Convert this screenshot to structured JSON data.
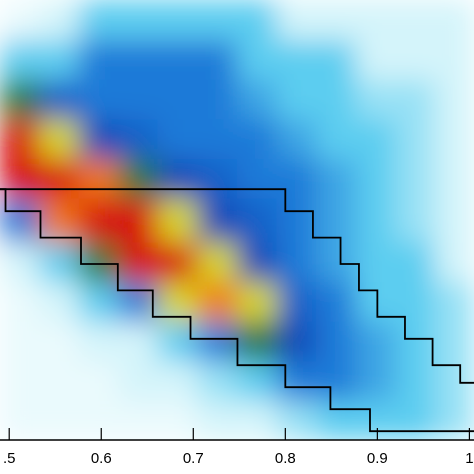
{
  "chart_data": {
    "type": "heatmap",
    "xlim": [
      0.49,
      1.005
    ],
    "ylim": [
      0,
      1
    ],
    "xticks": [
      {
        "value": 0.5,
        "label": ".5"
      },
      0.6,
      0.7,
      0.8,
      0.9,
      1
    ],
    "xbins": [
      0.49,
      0.533,
      0.576,
      0.619,
      0.662,
      0.705,
      0.748,
      0.791,
      0.834,
      0.877,
      0.92,
      0.963,
      1.005
    ],
    "ybins": [
      0,
      0.09,
      0.18,
      0.27,
      0.36,
      0.45,
      0.55,
      0.64,
      0.73,
      0.82,
      0.91,
      1.0
    ],
    "zlim": [
      0,
      9
    ],
    "colormap": [
      "#ffffff",
      "#d4f4fa",
      "#5ccdf0",
      "#1e7ad8",
      "#1448b8",
      "#2a7a3a",
      "#d8d820",
      "#f07818",
      "#d81010",
      "#a00000"
    ],
    "z": [
      [
        0.5,
        0.5,
        0.5,
        0.5,
        0.5,
        1,
        1,
        1.5,
        2,
        2,
        2,
        1.5
      ],
      [
        0.5,
        0.5,
        0.5,
        1,
        1,
        1.5,
        2,
        3,
        3,
        2.5,
        2,
        1.5
      ],
      [
        0.5,
        0.5,
        1,
        1,
        2,
        3,
        5,
        4,
        3,
        2.5,
        2,
        1.5
      ],
      [
        0.5,
        1,
        2,
        3,
        6,
        7,
        6,
        3.5,
        3,
        2,
        2,
        1.5
      ],
      [
        1,
        2,
        5,
        8,
        8,
        6,
        4,
        3,
        2.5,
        2,
        2,
        1
      ],
      [
        3,
        7,
        8,
        8,
        6,
        4,
        3.5,
        3,
        2.5,
        2,
        1.5,
        1
      ],
      [
        8,
        8,
        7,
        5,
        4,
        3.5,
        3,
        3,
        2.5,
        2,
        1.5,
        1
      ],
      [
        8,
        6,
        4,
        3.5,
        3,
        3,
        3,
        2.5,
        2,
        2,
        1.5,
        1
      ],
      [
        5,
        3.5,
        3,
        3,
        3,
        3,
        2.5,
        2,
        2,
        1.5,
        1.5,
        1
      ],
      [
        2,
        2,
        3,
        3,
        3,
        3,
        2,
        2,
        2,
        1,
        1,
        1
      ],
      [
        0.5,
        1,
        2,
        2,
        2,
        2,
        2,
        1,
        1,
        1,
        1,
        1
      ]
    ],
    "lines": [
      {
        "color": "#000000",
        "step": true,
        "x": [
          0.49,
          0.8,
          0.83,
          0.86,
          0.88,
          0.9,
          0.93,
          0.96,
          0.99,
          1.005
        ],
        "y": [
          0.57,
          0.52,
          0.46,
          0.4,
          0.34,
          0.28,
          0.23,
          0.17,
          0.13,
          0.13
        ]
      },
      {
        "color": "#000000",
        "step": true,
        "x": [
          0.49,
          0.496,
          0.534,
          0.578,
          0.618,
          0.656,
          0.697,
          0.748,
          0.8,
          0.849,
          0.892,
          1.005
        ],
        "y": [
          0.57,
          0.52,
          0.46,
          0.4,
          0.34,
          0.28,
          0.23,
          0.17,
          0.12,
          0.07,
          0.02,
          0.02
        ]
      }
    ]
  }
}
